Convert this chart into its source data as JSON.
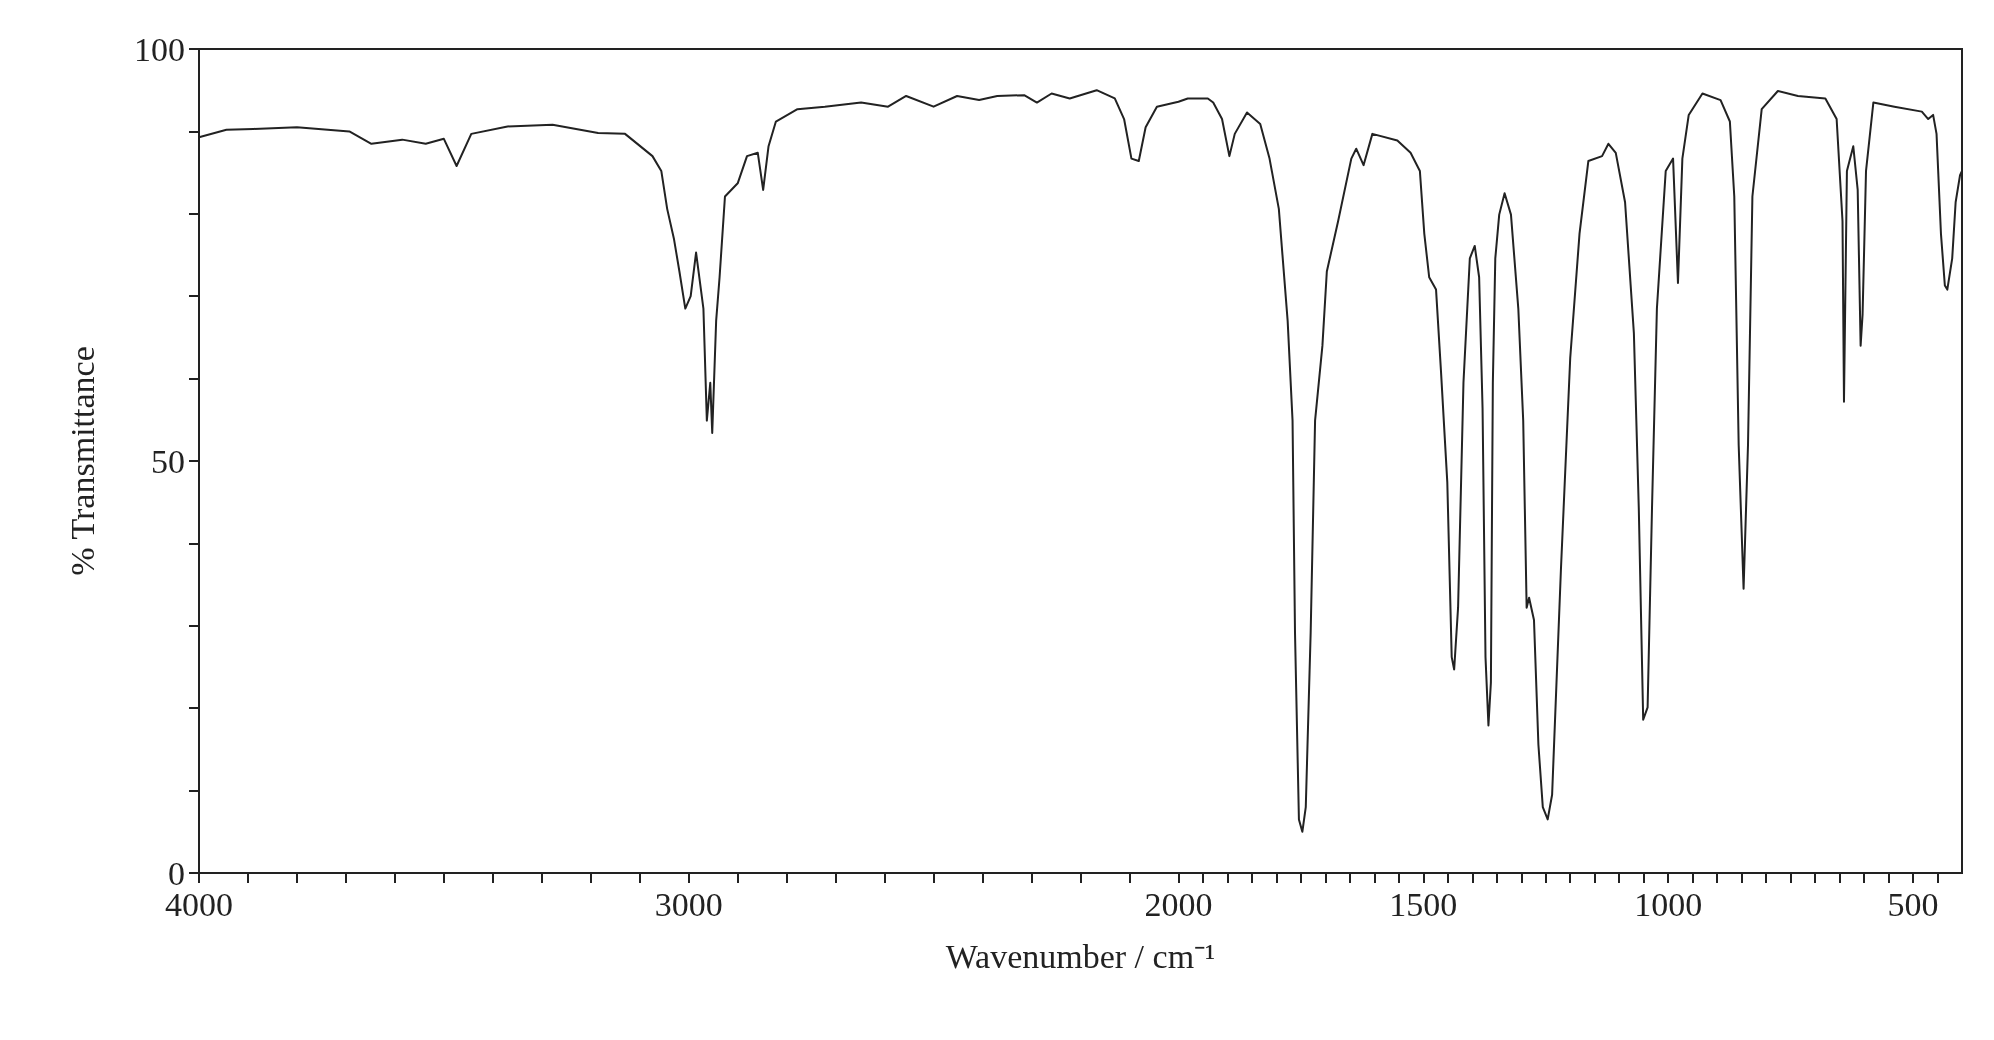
{
  "chart_data": {
    "type": "line",
    "xlabel": "Wavenumber / cm⁻¹",
    "ylabel": "% Transmittance",
    "xlim": [
      4000,
      400
    ],
    "ylim": [
      0,
      100
    ],
    "xticks": [
      4000,
      {
        "value": 3900,
        "label": null
      },
      {
        "value": 3800,
        "label": null
      },
      {
        "value": 3700,
        "label": null
      },
      {
        "value": 3600,
        "label": null
      },
      {
        "value": 3500,
        "label": null
      },
      {
        "value": 3400,
        "label": null
      },
      {
        "value": 3300,
        "label": null
      },
      {
        "value": 3200,
        "label": null
      },
      {
        "value": 3100,
        "label": null
      },
      3000,
      {
        "value": 2900,
        "label": null
      },
      {
        "value": 2800,
        "label": null
      },
      {
        "value": 2700,
        "label": null
      },
      {
        "value": 2600,
        "label": null
      },
      {
        "value": 2500,
        "label": null
      },
      {
        "value": 2400,
        "label": null
      },
      {
        "value": 2300,
        "label": null
      },
      {
        "value": 2200,
        "label": null
      },
      {
        "value": 2100,
        "label": null
      },
      2000,
      {
        "value": 1950,
        "label": null
      },
      {
        "value": 1900,
        "label": null
      },
      {
        "value": 1850,
        "label": null
      },
      {
        "value": 1800,
        "label": null
      },
      {
        "value": 1750,
        "label": null
      },
      {
        "value": 1700,
        "label": null
      },
      {
        "value": 1650,
        "label": null
      },
      {
        "value": 1600,
        "label": null
      },
      {
        "value": 1550,
        "label": null
      },
      1500,
      {
        "value": 1450,
        "label": null
      },
      {
        "value": 1400,
        "label": null
      },
      {
        "value": 1350,
        "label": null
      },
      {
        "value": 1300,
        "label": null
      },
      {
        "value": 1250,
        "label": null
      },
      {
        "value": 1200,
        "label": null
      },
      {
        "value": 1150,
        "label": null
      },
      {
        "value": 1100,
        "label": null
      },
      {
        "value": 1050,
        "label": null
      },
      1000,
      {
        "value": 950,
        "label": null
      },
      {
        "value": 900,
        "label": null
      },
      {
        "value": 850,
        "label": null
      },
      {
        "value": 800,
        "label": null
      },
      {
        "value": 750,
        "label": null
      },
      {
        "value": 700,
        "label": null
      },
      {
        "value": 650,
        "label": null
      },
      {
        "value": 600,
        "label": null
      },
      {
        "value": 550,
        "label": null
      },
      500,
      {
        "value": 450,
        "label": null
      }
    ],
    "yticks": [
      0,
      {
        "value": 10,
        "label": null
      },
      {
        "value": 20,
        "label": null
      },
      {
        "value": 30,
        "label": null
      },
      {
        "value": 40,
        "label": null
      },
      50,
      {
        "value": 60,
        "label": null
      },
      {
        "value": 70,
        "label": null
      },
      {
        "value": 80,
        "label": null
      },
      {
        "value": 90,
        "label": null
      },
      100
    ],
    "marker": "none",
    "line_style": "solid",
    "series": [
      {
        "color": "#222222",
        "x": [
          4000,
          3944,
          3889,
          3800,
          3693,
          3648,
          3585,
          3537,
          3500,
          3474,
          3444,
          3370,
          3278,
          3185,
          3130,
          3074,
          3056,
          3044,
          3030,
          3019,
          3007,
          2996,
          2985,
          2970,
          2963,
          2956,
          2952,
          2944,
          2937,
          2926,
          2900,
          2881,
          2859,
          2848,
          2837,
          2822,
          2778,
          2722,
          2648,
          2593,
          2556,
          2500,
          2452,
          2407,
          2370,
          2315,
          2289,
          2259,
          2222,
          2167,
          2130,
          2111,
          2096,
          2081,
          2067,
          2044,
          2000,
          1981,
          1940,
          1929,
          1911,
          1896,
          1885,
          1860,
          1833,
          1814,
          1795,
          1777,
          1767,
          1762,
          1754,
          1747,
          1740,
          1730,
          1721,
          1706,
          1697,
          1674,
          1647,
          1637,
          1622,
          1604,
          1553,
          1526,
          1507,
          1498,
          1488,
          1474,
          1464,
          1451,
          1442,
          1437,
          1429,
          1418,
          1405,
          1395,
          1386,
          1379,
          1373,
          1367,
          1362,
          1358,
          1353,
          1345,
          1334,
          1321,
          1306,
          1296,
          1289,
          1284,
          1274,
          1265,
          1256,
          1246,
          1237,
          1219,
          1200,
          1181,
          1163,
          1135,
          1122,
          1107,
          1088,
          1070,
          1060,
          1051,
          1042,
          1033,
          1023,
          1005,
          990,
          980,
          971,
          958,
          930,
          893,
          874,
          865,
          856,
          846,
          837,
          828,
          809,
          776,
          735,
          679,
          656,
          644,
          641,
          635,
          622,
          613,
          607,
          603,
          596,
          581,
          538,
          482,
          469,
          459,
          452,
          443,
          435,
          430,
          420,
          413,
          404,
          400
        ],
        "values": [
          89.3,
          90.2,
          90.3,
          90.5,
          90,
          88.5,
          89,
          88.5,
          89.1,
          85.8,
          89.7,
          90.6,
          90.8,
          89.8,
          89.7,
          87,
          85.2,
          80.6,
          76.9,
          73,
          68.5,
          70,
          75.3,
          68.5,
          54.9,
          59.5,
          53.4,
          67,
          72.3,
          82.1,
          83.7,
          87,
          87.4,
          82.9,
          88.2,
          91.2,
          92.7,
          93,
          93.5,
          93,
          94.3,
          93,
          94.3,
          93.8,
          94.3,
          94.4,
          93.5,
          94.6,
          94,
          95,
          94,
          91.5,
          86.7,
          86.4,
          90.5,
          93,
          93.6,
          94,
          94,
          93.5,
          91.5,
          87,
          89.7,
          92.3,
          90.9,
          86.7,
          80.6,
          67,
          54.9,
          29.2,
          6.5,
          5,
          8,
          29.2,
          54.9,
          64,
          73,
          79.1,
          86.7,
          87.9,
          85.9,
          89.7,
          88.9,
          87.4,
          85.2,
          77.6,
          72.3,
          70.8,
          61,
          47.4,
          26.2,
          24.7,
          32.2,
          59.5,
          74.6,
          76.1,
          72.3,
          56.4,
          26.2,
          17.9,
          23.1,
          59.5,
          74.6,
          79.9,
          82.5,
          79.9,
          68.5,
          54.9,
          32.2,
          33.4,
          30.7,
          15.6,
          8,
          6.5,
          9.5,
          36.8,
          62.5,
          77.6,
          86.4,
          87,
          88.5,
          87.4,
          81.4,
          65.5,
          44.3,
          18.6,
          20.1,
          44.3,
          68.5,
          85.2,
          86.7,
          71.6,
          86.7,
          92,
          94.6,
          93.8,
          91.2,
          82.1,
          51.9,
          34.5,
          51.9,
          82.1,
          92.7,
          94.9,
          94.3,
          94,
          91.5,
          79.1,
          57.2,
          85.2,
          88.2,
          82.9,
          64,
          67.8,
          85.2,
          93.5,
          93,
          92.4,
          91.5,
          92,
          89.7,
          77.6,
          71.3,
          70.8,
          74.6,
          81.4,
          84.7,
          85.2
        ]
      }
    ]
  }
}
